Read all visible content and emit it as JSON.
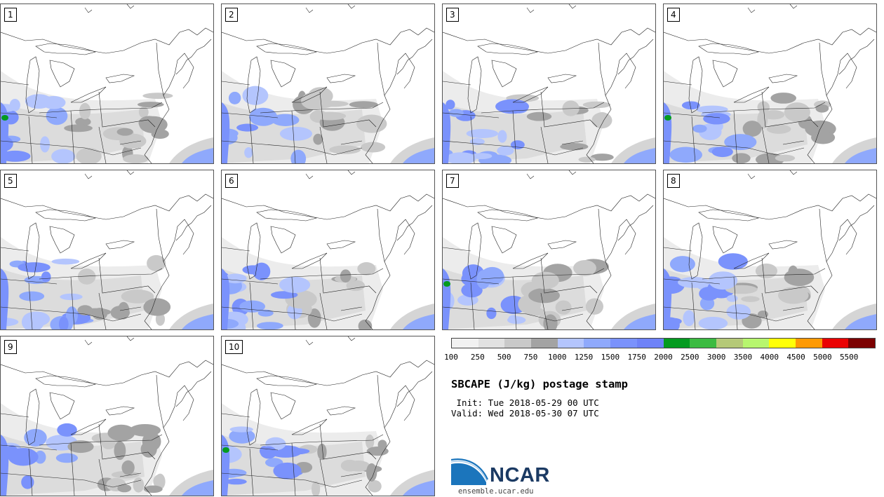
{
  "panels": [
    {
      "label": "1"
    },
    {
      "label": "2"
    },
    {
      "label": "3"
    },
    {
      "label": "4"
    },
    {
      "label": "5"
    },
    {
      "label": "6"
    },
    {
      "label": "7"
    },
    {
      "label": "8"
    },
    {
      "label": "9"
    },
    {
      "label": "10"
    }
  ],
  "colorbar": {
    "colors": [
      "#f1f1f1",
      "#e1e1e1",
      "#c9c9c9",
      "#a3a3a3",
      "#b4c5fd",
      "#8fa9fc",
      "#7a92fc",
      "#6e82f7",
      "#049b20",
      "#3bbb41",
      "#b5c978",
      "#b7f66e",
      "#ffff07",
      "#fe9a04",
      "#ea0203",
      "#7c0101"
    ],
    "ticks": [
      "100",
      "250",
      "500",
      "750",
      "1000",
      "1250",
      "1500",
      "1750",
      "2000",
      "2500",
      "3000",
      "3500",
      "4000",
      "4500",
      "5000",
      "5500"
    ]
  },
  "title": "SBCAPE (J/kg) postage stamp",
  "init": " Init: Tue 2018-05-29 00 UTC",
  "valid": "Valid: Wed 2018-05-30 07 UTC",
  "logo": {
    "name": "NCAR",
    "accent": "#1b75bc"
  },
  "site": "ensemble.ucar.edu"
}
